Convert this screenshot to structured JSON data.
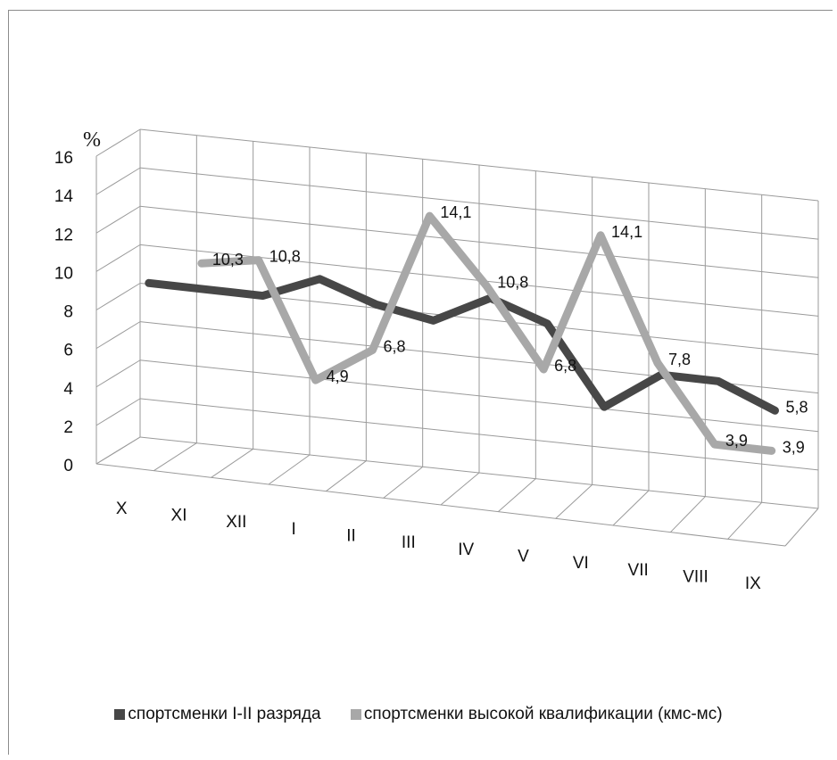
{
  "chart_data": {
    "type": "line",
    "categories": [
      "X",
      "XI",
      "XII",
      "I",
      "II",
      "III",
      "IV",
      "V",
      "VI",
      "VII",
      "VIII",
      "IX"
    ],
    "ylim": [
      0,
      16
    ],
    "yticks": [
      "0",
      "2",
      "4",
      "6",
      "8",
      "10",
      "12",
      "14",
      "16"
    ],
    "y_unit": "%",
    "grid": true,
    "legend_position": "bottom",
    "series": [
      {
        "name": "спортсменки I-II разряда",
        "color": "#474747",
        "values": [
          8.8,
          8.8,
          8.8,
          10.0,
          9.0,
          8.5,
          10.0,
          9.0,
          5.0,
          7.0,
          7.0,
          5.8
        ],
        "labels": [
          "",
          "",
          "",
          "",
          "",
          "",
          "",
          "",
          "",
          "",
          "",
          "5,8"
        ]
      },
      {
        "name": "спортсменки высокой квалификации  (кмс-мс)",
        "color": "#a8a8a8",
        "values": [
          null,
          10.3,
          10.8,
          4.9,
          6.8,
          14.1,
          10.8,
          6.8,
          14.1,
          7.8,
          3.9,
          3.9
        ],
        "labels": [
          "",
          "10,3",
          "10,8",
          "4,9",
          "6,8",
          "14,1",
          "10,8",
          "6,8",
          "14,1",
          "7,8",
          "3,9",
          "3,9"
        ]
      }
    ]
  }
}
